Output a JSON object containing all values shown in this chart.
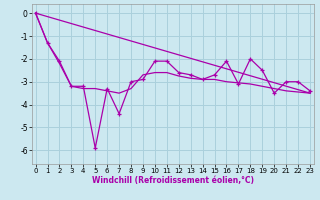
{
  "xlabel": "Windchill (Refroidissement éolien,°C)",
  "background_color": "#cce8f0",
  "grid_color": "#aad0dc",
  "line_color": "#aa00aa",
  "xlim": [
    -0.3,
    23.3
  ],
  "ylim": [
    -6.6,
    0.4
  ],
  "yticks": [
    0,
    -1,
    -2,
    -3,
    -4,
    -5,
    -6
  ],
  "xticks": [
    0,
    1,
    2,
    3,
    4,
    5,
    6,
    7,
    8,
    9,
    10,
    11,
    12,
    13,
    14,
    15,
    16,
    17,
    18,
    19,
    20,
    21,
    22,
    23
  ],
  "series_zigzag_x": [
    0,
    1,
    2,
    3,
    4,
    5,
    6,
    7,
    8,
    9,
    10,
    11,
    12,
    13,
    14,
    15,
    16,
    17,
    18,
    19,
    20,
    21,
    22,
    23
  ],
  "series_zigzag_y": [
    0.0,
    -1.3,
    -2.1,
    -3.2,
    -3.2,
    -5.9,
    -3.3,
    -4.4,
    -3.0,
    -2.9,
    -2.1,
    -2.1,
    -2.6,
    -2.7,
    -2.9,
    -2.7,
    -2.1,
    -3.1,
    -2.0,
    -2.5,
    -3.5,
    -3.0,
    -3.0,
    -3.4
  ],
  "series_smooth_x": [
    0,
    1,
    2,
    3,
    4,
    5,
    6,
    7,
    8,
    9,
    10,
    11,
    12,
    13,
    14,
    15,
    16,
    17,
    18,
    19,
    20,
    21,
    22,
    23
  ],
  "series_smooth_y": [
    0.0,
    -1.3,
    -2.2,
    -3.2,
    -3.3,
    -3.3,
    -3.4,
    -3.5,
    -3.3,
    -2.7,
    -2.6,
    -2.6,
    -2.75,
    -2.85,
    -2.9,
    -2.9,
    -3.0,
    -3.05,
    -3.1,
    -3.2,
    -3.3,
    -3.4,
    -3.45,
    -3.5
  ],
  "series_line_x": [
    0,
    23
  ],
  "series_line_y": [
    0.0,
    -3.5
  ]
}
